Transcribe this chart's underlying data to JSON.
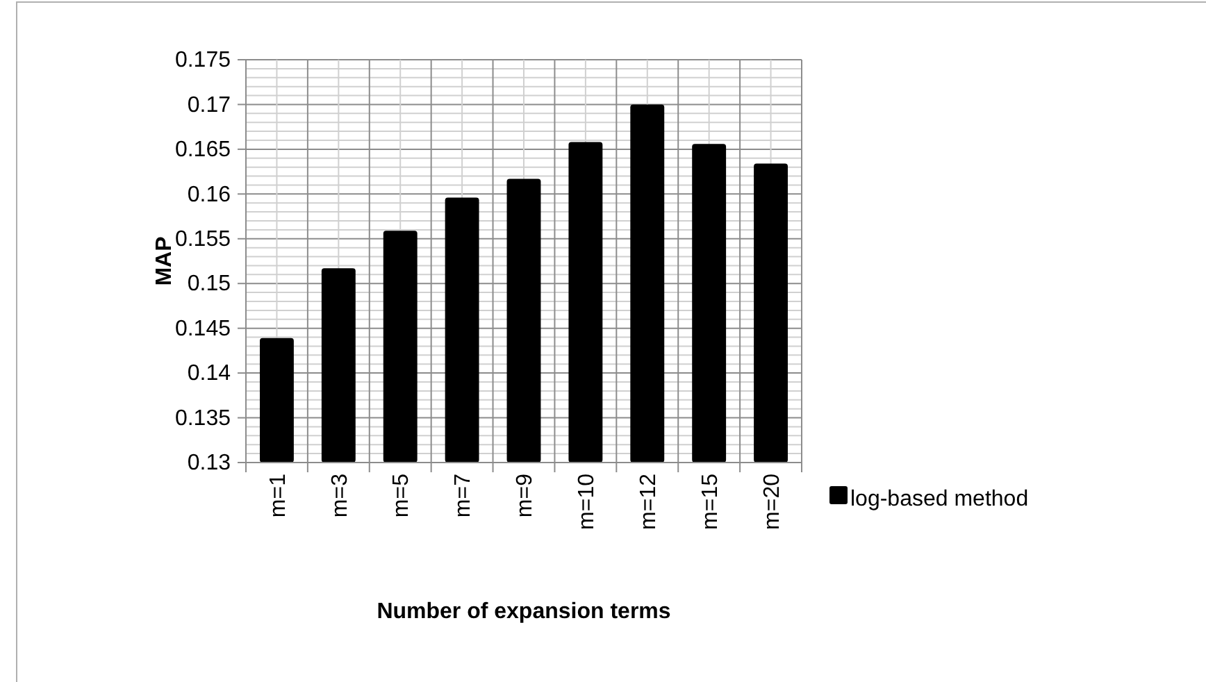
{
  "chart_data": {
    "type": "bar",
    "xlabel": "Number of expansion terms",
    "ylabel": "MAP",
    "categories": [
      "m=1",
      "m=3",
      "m=5",
      "m=7",
      "m=9",
      "m=10",
      "m=12",
      "m=15",
      "m=20"
    ],
    "series": [
      {
        "name": "log-based method",
        "color": "#000000",
        "values": [
          0.1439,
          0.1517,
          0.1559,
          0.1596,
          0.1617,
          0.1658,
          0.17,
          0.1656,
          0.1634
        ]
      }
    ],
    "ylim": [
      0.13,
      0.175
    ],
    "yticks": [
      0.13,
      0.135,
      0.14,
      0.145,
      0.15,
      0.155,
      0.16,
      0.165,
      0.17,
      0.175
    ],
    "grid": true,
    "legend": "right"
  }
}
